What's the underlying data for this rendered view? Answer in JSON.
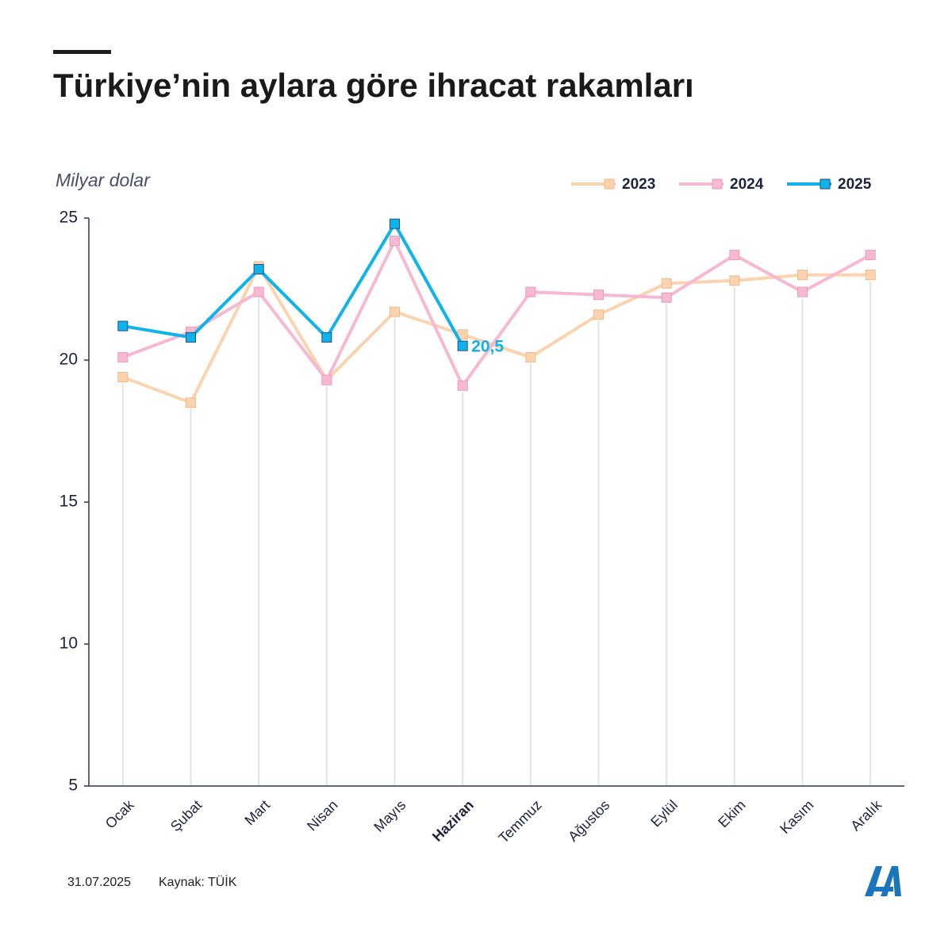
{
  "chart_data": {
    "type": "line",
    "title": "Türkiye’nin aylara göre ihracat rakamları",
    "y_axis_label": "Milyar dolar",
    "categories": [
      "Ocak",
      "Şubat",
      "Mart",
      "Nisan",
      "Mayıs",
      "Haziran",
      "Temmuz",
      "Ağustos",
      "Eylül",
      "Ekim",
      "Kasım",
      "Aralık"
    ],
    "series": [
      {
        "name": "2023",
        "color": "#fbd3ae",
        "values": [
          19.4,
          18.5,
          23.3,
          19.3,
          21.7,
          20.9,
          20.1,
          21.6,
          22.7,
          22.8,
          23.0,
          23.0
        ]
      },
      {
        "name": "2024",
        "color": "#f7b8d2",
        "values": [
          20.1,
          21.0,
          22.4,
          19.3,
          24.2,
          19.1,
          22.4,
          22.3,
          22.2,
          23.7,
          22.4,
          23.7
        ]
      },
      {
        "name": "2025",
        "color": "#0db3ea",
        "values": [
          21.2,
          20.8,
          23.2,
          20.8,
          24.8,
          20.5,
          null,
          null,
          null,
          null,
          null,
          null
        ],
        "value_labels": [
          null,
          null,
          null,
          null,
          null,
          "20,5",
          null,
          null,
          null,
          null,
          null,
          null
        ]
      }
    ],
    "ylim": [
      5,
      25
    ],
    "yticks": [
      5,
      10,
      15,
      20,
      25
    ],
    "legend": "top-right",
    "date": "31.07.2025",
    "source": "Kaynak: TÜİK"
  }
}
